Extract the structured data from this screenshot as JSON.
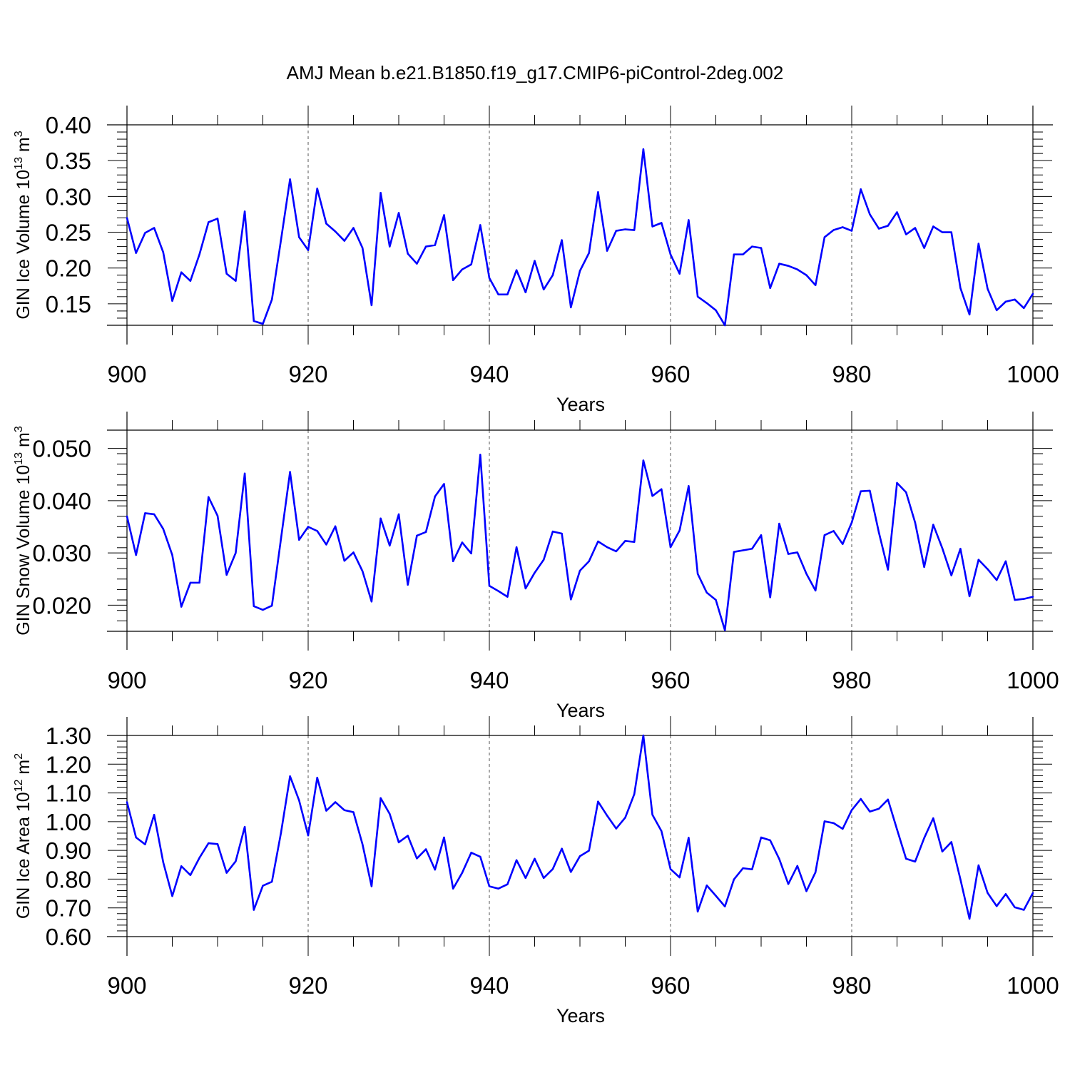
{
  "title": "AMJ Mean b.e21.B1850.f19_g17.CMIP6-piControl-2deg.002",
  "colors": {
    "series": "#0000ff",
    "axis": "#000000"
  },
  "chart_data": [
    {
      "type": "line",
      "xlabel": "Years",
      "ylabel": {
        "main": "GIN Ice Volume 10",
        "sup": "13",
        "unit": " m",
        "unit_sup": "3"
      },
      "xlim": [
        900,
        1000
      ],
      "ylim": [
        0.12,
        0.4
      ],
      "x_ticks": [
        900,
        920,
        940,
        960,
        980,
        1000
      ],
      "x_tick_labels": [
        "900",
        "920",
        "940",
        "960",
        "980",
        "1000"
      ],
      "y_ticks": [
        0.15,
        0.2,
        0.25,
        0.3,
        0.35,
        0.4
      ],
      "y_tick_labels": [
        "0.15",
        "0.20",
        "0.25",
        "0.30",
        "0.35",
        "0.40"
      ],
      "y_minor_step": 0.01,
      "grid": "dashed vertical at major x ticks",
      "x_start": 900,
      "x_step": 1,
      "values": [
        0.27,
        0.221,
        0.249,
        0.256,
        0.222,
        0.154,
        0.194,
        0.182,
        0.219,
        0.264,
        0.269,
        0.192,
        0.182,
        0.279,
        0.126,
        0.122,
        0.156,
        0.239,
        0.324,
        0.243,
        0.225,
        0.311,
        0.262,
        0.251,
        0.238,
        0.256,
        0.228,
        0.148,
        0.305,
        0.23,
        0.277,
        0.22,
        0.206,
        0.23,
        0.232,
        0.274,
        0.183,
        0.198,
        0.205,
        0.26,
        0.186,
        0.163,
        0.163,
        0.197,
        0.166,
        0.21,
        0.17,
        0.19,
        0.239,
        0.145,
        0.196,
        0.221,
        0.306,
        0.224,
        0.252,
        0.254,
        0.253,
        0.366,
        0.258,
        0.263,
        0.219,
        0.192,
        0.267,
        0.16,
        0.151,
        0.141,
        0.12,
        0.219,
        0.219,
        0.23,
        0.228,
        0.172,
        0.206,
        0.203,
        0.198,
        0.19,
        0.176,
        0.243,
        0.253,
        0.257,
        0.252,
        0.31,
        0.275,
        0.255,
        0.259,
        0.278,
        0.247,
        0.256,
        0.228,
        0.258,
        0.25,
        0.25,
        0.172,
        0.135,
        0.234,
        0.171,
        0.141,
        0.153,
        0.156,
        0.144,
        0.164
      ]
    },
    {
      "type": "line",
      "xlabel": "Years",
      "ylabel": {
        "main": "GIN Snow Volume 10",
        "sup": "13",
        "unit": " m",
        "unit_sup": "3"
      },
      "xlim": [
        900,
        1000
      ],
      "ylim": [
        0.015,
        0.0535
      ],
      "x_ticks": [
        900,
        920,
        940,
        960,
        980,
        1000
      ],
      "x_tick_labels": [
        "900",
        "920",
        "940",
        "960",
        "980",
        "1000"
      ],
      "y_ticks": [
        0.02,
        0.03,
        0.04,
        0.05
      ],
      "y_tick_labels": [
        "0.020",
        "0.030",
        "0.040",
        "0.050"
      ],
      "y_minor_step": 0.002,
      "grid": "dashed vertical at major x ticks",
      "x_start": 900,
      "x_step": 1,
      "values": [
        0.037,
        0.0296,
        0.0376,
        0.0374,
        0.0346,
        0.0296,
        0.0197,
        0.0243,
        0.0243,
        0.0407,
        0.0371,
        0.0258,
        0.03,
        0.0452,
        0.0198,
        0.0191,
        0.0199,
        0.0327,
        0.0455,
        0.0325,
        0.035,
        0.0342,
        0.0316,
        0.0351,
        0.0285,
        0.0301,
        0.0265,
        0.0207,
        0.0366,
        0.0314,
        0.0374,
        0.0239,
        0.0333,
        0.034,
        0.0408,
        0.0432,
        0.0284,
        0.032,
        0.0299,
        0.0488,
        0.0237,
        0.0227,
        0.0216,
        0.0311,
        0.0232,
        0.0262,
        0.0287,
        0.0341,
        0.0337,
        0.0211,
        0.0266,
        0.0284,
        0.0322,
        0.0311,
        0.0303,
        0.0323,
        0.0321,
        0.0477,
        0.0409,
        0.0422,
        0.0311,
        0.0343,
        0.0428,
        0.026,
        0.0224,
        0.021,
        0.0152,
        0.0302,
        0.0305,
        0.0308,
        0.0334,
        0.0215,
        0.0356,
        0.0298,
        0.0301,
        0.026,
        0.0228,
        0.0334,
        0.0342,
        0.0317,
        0.0358,
        0.0418,
        0.0419,
        0.0339,
        0.0268,
        0.0434,
        0.0416,
        0.0358,
        0.0273,
        0.0354,
        0.0309,
        0.0257,
        0.0308,
        0.0217,
        0.0287,
        0.0269,
        0.0248,
        0.0284,
        0.021,
        0.0212,
        0.0216
      ]
    },
    {
      "type": "line",
      "xlabel": "Years",
      "ylabel": {
        "main": "GIN Ice Area 10",
        "sup": "12",
        "unit": " m",
        "unit_sup": "2"
      },
      "xlim": [
        900,
        1000
      ],
      "ylim": [
        0.6,
        1.3
      ],
      "x_ticks": [
        900,
        920,
        940,
        960,
        980,
        1000
      ],
      "x_tick_labels": [
        "900",
        "920",
        "940",
        "960",
        "980",
        "1000"
      ],
      "y_ticks": [
        0.6,
        0.7,
        0.8,
        0.9,
        1.0,
        1.1,
        1.2,
        1.3
      ],
      "y_tick_labels": [
        "0.60",
        "0.70",
        "0.80",
        "0.90",
        "1.00",
        "1.10",
        "1.20",
        "1.30"
      ],
      "y_minor_step": 0.02,
      "grid": "dashed vertical at major x ticks",
      "x_start": 900,
      "x_step": 1,
      "values": [
        1.068,
        0.945,
        0.921,
        1.024,
        0.859,
        0.741,
        0.845,
        0.814,
        0.874,
        0.925,
        0.922,
        0.822,
        0.862,
        0.982,
        0.693,
        0.777,
        0.791,
        0.961,
        1.158,
        1.074,
        0.952,
        1.153,
        1.038,
        1.068,
        1.04,
        1.033,
        0.921,
        0.775,
        1.082,
        1.027,
        0.928,
        0.951,
        0.872,
        0.904,
        0.833,
        0.945,
        0.767,
        0.822,
        0.892,
        0.878,
        0.775,
        0.767,
        0.782,
        0.866,
        0.804,
        0.871,
        0.804,
        0.835,
        0.906,
        0.825,
        0.88,
        0.899,
        1.07,
        1.021,
        0.976,
        1.014,
        1.096,
        1.3,
        1.024,
        0.967,
        0.835,
        0.806,
        0.944,
        0.687,
        0.778,
        0.742,
        0.705,
        0.799,
        0.838,
        0.834,
        0.945,
        0.935,
        0.87,
        0.783,
        0.846,
        0.758,
        0.824,
        1.001,
        0.995,
        0.975,
        1.04,
        1.079,
        1.035,
        1.045,
        1.077,
        0.973,
        0.871,
        0.861,
        0.943,
        1.012,
        0.896,
        0.929,
        0.799,
        0.662,
        0.848,
        0.752,
        0.706,
        0.748,
        0.702,
        0.693,
        0.752
      ]
    }
  ]
}
